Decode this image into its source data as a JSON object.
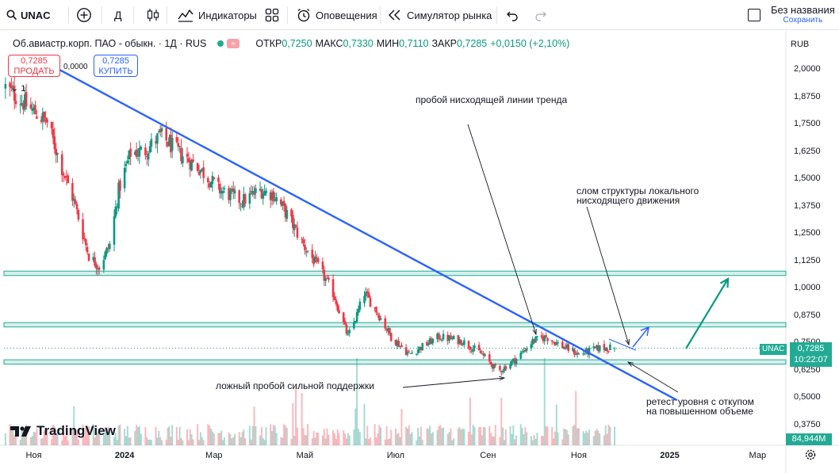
{
  "toolbar": {
    "symbol": "UNAC",
    "interval": "Д",
    "indicators": "Индикаторы",
    "alerts": "Оповещения",
    "replay": "Симулятор рынка",
    "layout_title": "Без названия",
    "save": "Сохранить"
  },
  "legend": {
    "name": "Об.авиастр.корп. ПАО - обыкн. · 1Д · RUS",
    "wave": "≈",
    "open_k": "ОТКР",
    "open_v": "0,7250",
    "high_k": "МАКС",
    "high_v": "0,7330",
    "low_k": "МИН",
    "low_v": "0,7110",
    "close_k": "ЗАКР",
    "close_v": "0,7285",
    "change": "+0,0150 (+2,10%)"
  },
  "trade": {
    "sell_price": "0,7285",
    "sell_label": "ПРОДАТЬ",
    "buy_price": "0,7285",
    "buy_label": "КУПИТЬ",
    "spread": "0,0000",
    "volume_toggle": "1"
  },
  "price_axis": {
    "currency": "RUB",
    "labels": [
      "2,0000",
      "1,8750",
      "1,7500",
      "1,6250",
      "1,5000",
      "1,3750",
      "1,2500",
      "1,1250",
      "1,0000",
      "0,8750",
      "0,7500",
      "0,6250",
      "0,5000",
      "0,3750"
    ],
    "current_symbol": "UNAC",
    "current_price": "0,7285",
    "countdown": "10:22:07",
    "volume_value": "84,944M"
  },
  "time_axis": {
    "labels": [
      "Ноя",
      "2024",
      "Мар",
      "Май",
      "Июл",
      "Сен",
      "Ноя",
      "2025",
      "Мар"
    ]
  },
  "annotations": {
    "trend_break": "пробой нисходящей линии тренда",
    "structure_break_1": "слом структуры локального",
    "structure_break_2": "нисходящего движения",
    "false_break": "ложный пробой сильной поддержки",
    "retest_1": "ретест уровня с откупом",
    "retest_2": "на повышенном объеме"
  },
  "branding": {
    "logo_text": "TradingView"
  },
  "colors": {
    "up": "#089981",
    "down": "#f23645",
    "trend": "#2962ff",
    "zone": "#22ab94",
    "arrow": "#089981"
  },
  "chart_data": {
    "type": "candlestick",
    "title": "Об.авиастр.корп. ПАО - обыкн. · 1Д · RUS",
    "ylim": [
      0.3,
      2.1
    ],
    "x_range": [
      "2023-10-12",
      "2025-03-20"
    ],
    "support_zones": [
      [
        1.06,
        1.08
      ],
      [
        0.825,
        0.845
      ],
      [
        0.655,
        0.675
      ]
    ],
    "trend_line": {
      "from": [
        "2023-11-10",
        2.03
      ],
      "to": [
        "2025-01-06",
        0.49
      ]
    },
    "anchors": [
      [
        "2023-10-13",
        1.92
      ],
      [
        "2023-10-20",
        1.88
      ],
      [
        "2023-10-30",
        1.82
      ],
      [
        "2023-11-10",
        1.76
      ],
      [
        "2023-11-20",
        1.55
      ],
      [
        "2023-11-28",
        1.4
      ],
      [
        "2023-12-08",
        1.15
      ],
      [
        "2023-12-15",
        1.1
      ],
      [
        "2023-12-22",
        1.2
      ],
      [
        "2023-12-28",
        1.45
      ],
      [
        "2024-01-05",
        1.62
      ],
      [
        "2024-01-15",
        1.63
      ],
      [
        "2024-01-25",
        1.7
      ],
      [
        "2024-02-05",
        1.63
      ],
      [
        "2024-02-20",
        1.55
      ],
      [
        "2024-03-05",
        1.45
      ],
      [
        "2024-03-20",
        1.4
      ],
      [
        "2024-04-01",
        1.45
      ],
      [
        "2024-04-10",
        1.43
      ],
      [
        "2024-04-20",
        1.33
      ],
      [
        "2024-04-30",
        1.2
      ],
      [
        "2024-05-10",
        1.1
      ],
      [
        "2024-05-20",
        0.98
      ],
      [
        "2024-05-30",
        0.78
      ],
      [
        "2024-06-05",
        0.88
      ],
      [
        "2024-06-10",
        0.98
      ],
      [
        "2024-06-18",
        0.9
      ],
      [
        "2024-06-28",
        0.78
      ],
      [
        "2024-07-10",
        0.7
      ],
      [
        "2024-07-20",
        0.74
      ],
      [
        "2024-07-30",
        0.78
      ],
      [
        "2024-08-15",
        0.76
      ],
      [
        "2024-08-28",
        0.7
      ],
      [
        "2024-09-08",
        0.62
      ],
      [
        "2024-09-20",
        0.68
      ],
      [
        "2024-10-01",
        0.76
      ],
      [
        "2024-10-10",
        0.78
      ],
      [
        "2024-10-20",
        0.74
      ],
      [
        "2024-11-01",
        0.7
      ],
      [
        "2024-11-15",
        0.73
      ],
      [
        "2024-11-25",
        0.7285
      ]
    ],
    "last": {
      "open": 0.725,
      "high": 0.733,
      "low": 0.711,
      "close": 0.7285
    }
  }
}
